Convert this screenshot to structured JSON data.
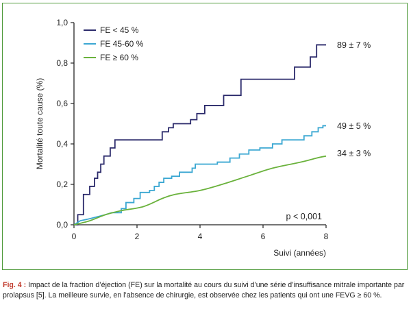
{
  "chart_data": {
    "type": "line",
    "step": true,
    "xlabel": "Suivi (années)",
    "ylabel": "Mortalité toute cause (%)",
    "xlim": [
      0,
      8
    ],
    "ylim": [
      0,
      1.0
    ],
    "x_ticks": [
      0,
      2,
      4,
      6,
      8
    ],
    "y_ticks": [
      0,
      0.2,
      0.4,
      0.6,
      0.8,
      1.0
    ],
    "y_tick_labels": [
      "0,0",
      "0,2",
      "0,4",
      "0,6",
      "0,8",
      "1,0"
    ],
    "grid": false,
    "legend_position": "top-left",
    "annotation": "p < 0,001",
    "series": [
      {
        "name": "FE < 45 %",
        "color": "#2b2a6b",
        "end_label": "89 ± 7 %",
        "points": [
          [
            0,
            0
          ],
          [
            0.12,
            0
          ],
          [
            0.12,
            0.05
          ],
          [
            0.3,
            0.05
          ],
          [
            0.3,
            0.15
          ],
          [
            0.5,
            0.15
          ],
          [
            0.5,
            0.19
          ],
          [
            0.65,
            0.19
          ],
          [
            0.65,
            0.23
          ],
          [
            0.75,
            0.23
          ],
          [
            0.75,
            0.26
          ],
          [
            0.85,
            0.26
          ],
          [
            0.85,
            0.3
          ],
          [
            0.95,
            0.3
          ],
          [
            0.95,
            0.34
          ],
          [
            1.15,
            0.34
          ],
          [
            1.15,
            0.38
          ],
          [
            1.3,
            0.38
          ],
          [
            1.3,
            0.42
          ],
          [
            2.8,
            0.42
          ],
          [
            2.8,
            0.46
          ],
          [
            3.0,
            0.46
          ],
          [
            3.0,
            0.48
          ],
          [
            3.15,
            0.48
          ],
          [
            3.15,
            0.5
          ],
          [
            3.7,
            0.5
          ],
          [
            3.7,
            0.52
          ],
          [
            3.9,
            0.52
          ],
          [
            3.9,
            0.55
          ],
          [
            4.15,
            0.55
          ],
          [
            4.15,
            0.59
          ],
          [
            4.75,
            0.59
          ],
          [
            4.75,
            0.64
          ],
          [
            5.3,
            0.64
          ],
          [
            5.3,
            0.72
          ],
          [
            7.0,
            0.72
          ],
          [
            7.0,
            0.78
          ],
          [
            7.5,
            0.78
          ],
          [
            7.5,
            0.83
          ],
          [
            7.7,
            0.83
          ],
          [
            7.7,
            0.89
          ],
          [
            8.0,
            0.89
          ]
        ]
      },
      {
        "name": "FE 45-60 %",
        "color": "#3aa7d2",
        "end_label": "49 ± 5 %",
        "points": [
          [
            0,
            0
          ],
          [
            0.2,
            0.02
          ],
          [
            0.5,
            0.03
          ],
          [
            1.0,
            0.05
          ],
          [
            1.2,
            0.06
          ],
          [
            1.5,
            0.06
          ],
          [
            1.5,
            0.08
          ],
          [
            1.65,
            0.08
          ],
          [
            1.65,
            0.11
          ],
          [
            1.9,
            0.11
          ],
          [
            1.9,
            0.13
          ],
          [
            2.1,
            0.13
          ],
          [
            2.1,
            0.16
          ],
          [
            2.4,
            0.16
          ],
          [
            2.4,
            0.17
          ],
          [
            2.55,
            0.17
          ],
          [
            2.55,
            0.19
          ],
          [
            2.7,
            0.19
          ],
          [
            2.7,
            0.21
          ],
          [
            2.85,
            0.21
          ],
          [
            2.85,
            0.23
          ],
          [
            3.1,
            0.23
          ],
          [
            3.1,
            0.24
          ],
          [
            3.35,
            0.24
          ],
          [
            3.35,
            0.26
          ],
          [
            3.75,
            0.26
          ],
          [
            3.75,
            0.28
          ],
          [
            3.85,
            0.28
          ],
          [
            3.85,
            0.3
          ],
          [
            4.55,
            0.3
          ],
          [
            4.55,
            0.31
          ],
          [
            4.95,
            0.31
          ],
          [
            4.95,
            0.33
          ],
          [
            5.25,
            0.33
          ],
          [
            5.25,
            0.35
          ],
          [
            5.55,
            0.35
          ],
          [
            5.55,
            0.37
          ],
          [
            5.9,
            0.37
          ],
          [
            5.9,
            0.38
          ],
          [
            6.3,
            0.38
          ],
          [
            6.3,
            0.4
          ],
          [
            6.6,
            0.4
          ],
          [
            6.6,
            0.42
          ],
          [
            7.3,
            0.42
          ],
          [
            7.3,
            0.44
          ],
          [
            7.55,
            0.44
          ],
          [
            7.55,
            0.46
          ],
          [
            7.75,
            0.46
          ],
          [
            7.75,
            0.48
          ],
          [
            7.9,
            0.48
          ],
          [
            7.9,
            0.49
          ],
          [
            8.0,
            0.49
          ]
        ]
      },
      {
        "name": "FE ≥ 60 %",
        "color": "#6ab23c",
        "end_label": "34 ± 3 %",
        "points": [
          [
            0,
            0
          ],
          [
            0.5,
            0.02
          ],
          [
            1.0,
            0.05
          ],
          [
            1.5,
            0.07
          ],
          [
            2.2,
            0.09
          ],
          [
            2.8,
            0.13
          ],
          [
            3.2,
            0.15
          ],
          [
            4.0,
            0.17
          ],
          [
            4.7,
            0.2
          ],
          [
            5.5,
            0.24
          ],
          [
            6.3,
            0.28
          ],
          [
            7.2,
            0.31
          ],
          [
            7.7,
            0.33
          ],
          [
            8.0,
            0.34
          ]
        ]
      }
    ]
  },
  "caption": {
    "figure_number": "Fig. 4 :",
    "text": "Impact de la fraction d’éjection (FE) sur la mortalité au cours du suivi d’une série d’insuffisance mitrale importante par prolapsus [5]. La meilleure survie, en l’absence de chirurgie, est observée chez les patients qui ont une FEVG ≥ 60 %."
  }
}
